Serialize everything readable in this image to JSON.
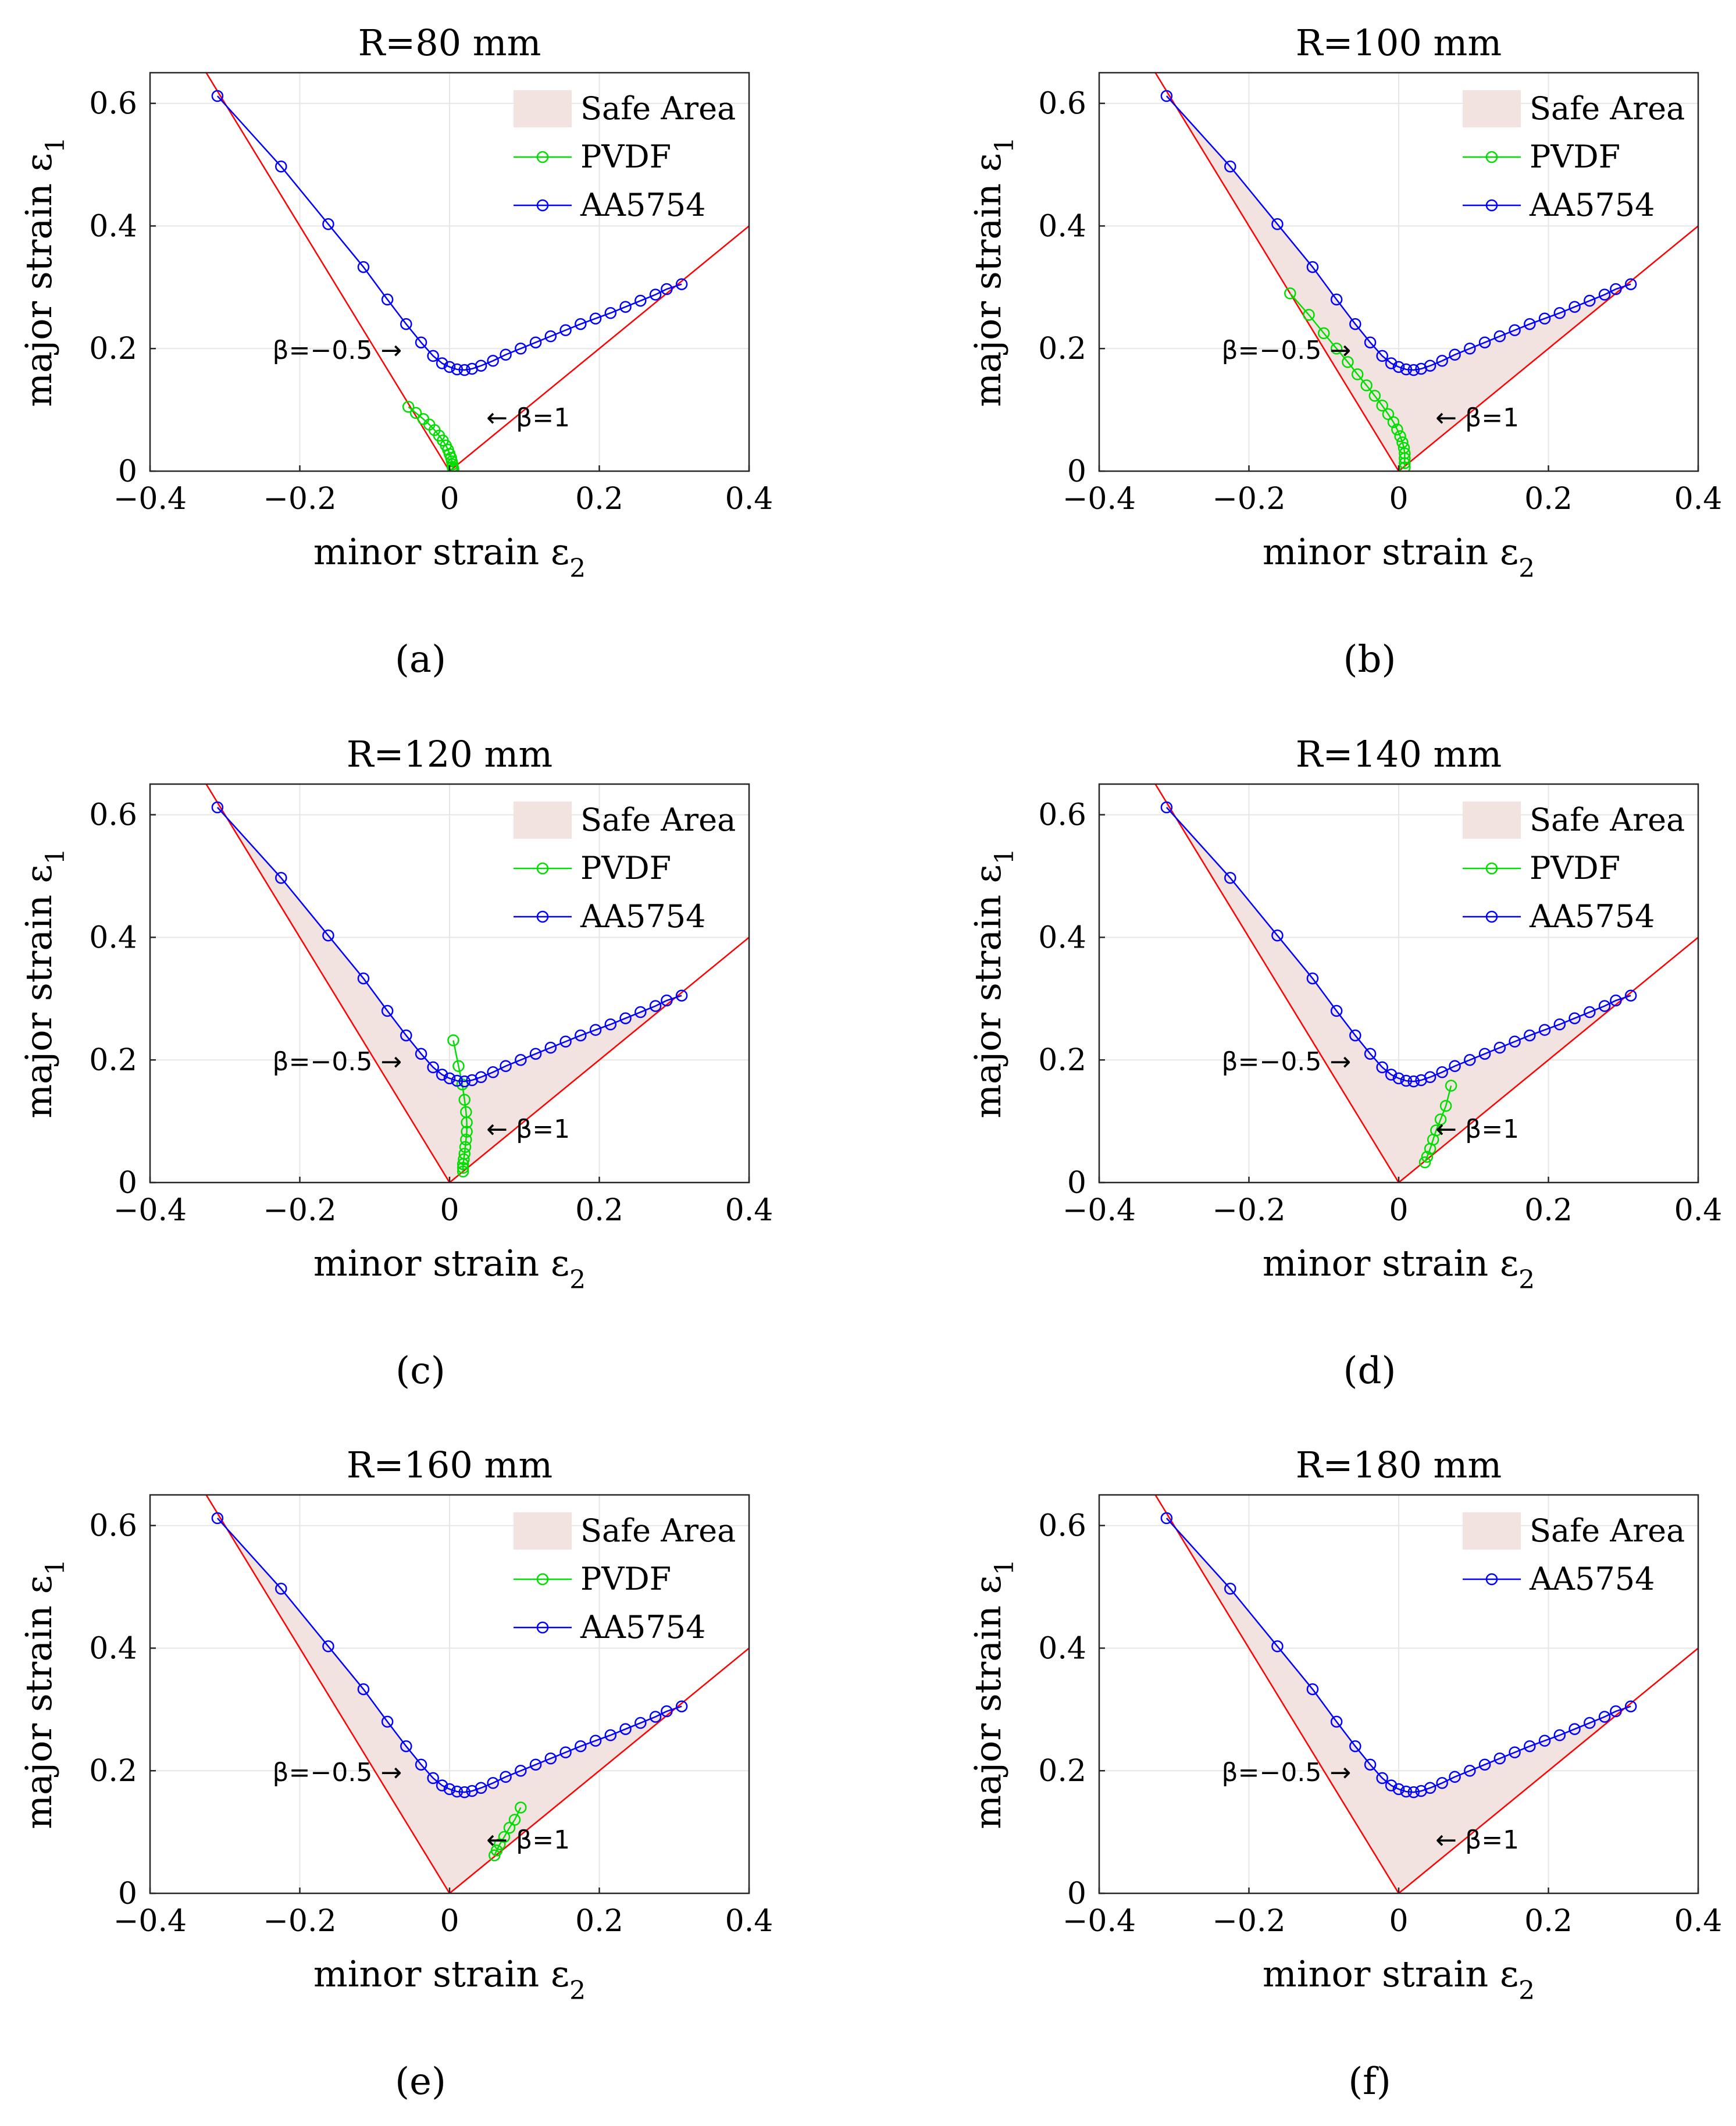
{
  "figure": {
    "chart_data": [
      {
        "type": "line",
        "panel_label": "(a)",
        "title": "R=80 mm",
        "xlabel": "minor strain ε",
        "xlabel_sub": "2",
        "ylabel": "major strain ε",
        "ylabel_sub": "1",
        "xlim": [
          -0.4,
          0.4
        ],
        "ylim": [
          0,
          0.65
        ],
        "xticks": [
          -0.4,
          -0.2,
          0,
          0.2,
          0.4
        ],
        "yticks": [
          0,
          0.2,
          0.4,
          0.6
        ],
        "xtick_labels": [
          "−0.4",
          "−0.2",
          "0",
          "0.2",
          "0.4"
        ],
        "ytick_labels": [
          "0",
          "0.2",
          "0.4",
          "0.6"
        ],
        "grid": true,
        "legend_position": "top-right",
        "safe_area": {
          "name": "Safe Area",
          "color": "#f2e3e1",
          "shown": false
        },
        "beta_lines": {
          "color": "#ff0000",
          "left_label": "β=−0.5 →",
          "right_label": "← β=1",
          "left_anchor": [
            -0.15,
            0.2
          ],
          "right_anchor": [
            0.105,
            0.09
          ]
        },
        "series": [
          {
            "name": "PVDF",
            "color": "#00dd00",
            "x": [
              -0.055,
              -0.045,
              -0.035,
              -0.027,
              -0.02,
              -0.014,
              -0.009,
              -0.005,
              -0.002,
              0.0,
              0.002,
              0.003,
              0.004,
              0.004,
              0.005,
              0.005
            ],
            "y": [
              0.105,
              0.095,
              0.085,
              0.076,
              0.067,
              0.058,
              0.05,
              0.042,
              0.035,
              0.028,
              0.022,
              0.016,
              0.011,
              0.007,
              0.004,
              0.002
            ]
          },
          {
            "name": "AA5754",
            "color": "#0000ff",
            "x": [
              -0.31,
              -0.225,
              -0.162,
              -0.115,
              -0.083,
              -0.058,
              -0.038,
              -0.022,
              -0.01,
              0.0,
              0.01,
              0.02,
              0.03,
              0.042,
              0.058,
              0.075,
              0.095,
              0.115,
              0.135,
              0.155,
              0.175,
              0.195,
              0.215,
              0.235,
              0.255,
              0.275,
              0.29,
              0.31
            ],
            "y": [
              0.612,
              0.497,
              0.403,
              0.333,
              0.28,
              0.24,
              0.21,
              0.188,
              0.176,
              0.17,
              0.166,
              0.165,
              0.167,
              0.172,
              0.18,
              0.19,
              0.2,
              0.21,
              0.22,
              0.23,
              0.24,
              0.249,
              0.258,
              0.268,
              0.278,
              0.288,
              0.297,
              0.305
            ]
          }
        ]
      },
      {
        "type": "line",
        "panel_label": "(b)",
        "title": "R=100 mm",
        "xlabel": "minor strain ε",
        "xlabel_sub": "2",
        "ylabel": "major strain ε",
        "ylabel_sub": "1",
        "xlim": [
          -0.4,
          0.4
        ],
        "ylim": [
          0,
          0.65
        ],
        "xticks": [
          -0.4,
          -0.2,
          0,
          0.2,
          0.4
        ],
        "yticks": [
          0,
          0.2,
          0.4,
          0.6
        ],
        "xtick_labels": [
          "−0.4",
          "−0.2",
          "0",
          "0.2",
          "0.4"
        ],
        "ytick_labels": [
          "0",
          "0.2",
          "0.4",
          "0.6"
        ],
        "grid": true,
        "legend_position": "top-right",
        "safe_area": {
          "name": "Safe Area",
          "color": "#f2e3e1",
          "shown": true
        },
        "beta_lines": {
          "color": "#ff0000",
          "left_label": "β=−0.5 →",
          "right_label": "← β=1",
          "left_anchor": [
            -0.15,
            0.2
          ],
          "right_anchor": [
            0.105,
            0.09
          ]
        },
        "series": [
          {
            "name": "PVDF",
            "color": "#00dd00",
            "x": [
              -0.145,
              -0.12,
              -0.1,
              -0.083,
              -0.068,
              -0.055,
              -0.043,
              -0.032,
              -0.022,
              -0.014,
              -0.007,
              -0.002,
              0.002,
              0.005,
              0.007,
              0.008,
              0.008,
              0.008,
              0.008
            ],
            "y": [
              0.29,
              0.255,
              0.225,
              0.2,
              0.178,
              0.158,
              0.14,
              0.123,
              0.107,
              0.093,
              0.08,
              0.068,
              0.057,
              0.047,
              0.038,
              0.029,
              0.021,
              0.013,
              0.006
            ]
          },
          {
            "name": "AA5754",
            "color": "#0000ff",
            "x": [
              -0.31,
              -0.225,
              -0.162,
              -0.115,
              -0.083,
              -0.058,
              -0.038,
              -0.022,
              -0.01,
              0.0,
              0.01,
              0.02,
              0.03,
              0.042,
              0.058,
              0.075,
              0.095,
              0.115,
              0.135,
              0.155,
              0.175,
              0.195,
              0.215,
              0.235,
              0.255,
              0.275,
              0.29,
              0.31
            ],
            "y": [
              0.612,
              0.497,
              0.403,
              0.333,
              0.28,
              0.24,
              0.21,
              0.188,
              0.176,
              0.17,
              0.166,
              0.165,
              0.167,
              0.172,
              0.18,
              0.19,
              0.2,
              0.21,
              0.22,
              0.23,
              0.24,
              0.249,
              0.258,
              0.268,
              0.278,
              0.288,
              0.297,
              0.305
            ]
          }
        ]
      },
      {
        "type": "line",
        "panel_label": "(c)",
        "title": "R=120 mm",
        "xlabel": "minor strain ε",
        "xlabel_sub": "2",
        "ylabel": "major strain ε",
        "ylabel_sub": "1",
        "xlim": [
          -0.4,
          0.4
        ],
        "ylim": [
          0,
          0.65
        ],
        "xticks": [
          -0.4,
          -0.2,
          0,
          0.2,
          0.4
        ],
        "yticks": [
          0,
          0.2,
          0.4,
          0.6
        ],
        "xtick_labels": [
          "−0.4",
          "−0.2",
          "0",
          "0.2",
          "0.4"
        ],
        "ytick_labels": [
          "0",
          "0.2",
          "0.4",
          "0.6"
        ],
        "grid": true,
        "legend_position": "top-right",
        "safe_area": {
          "name": "Safe Area",
          "color": "#f2e3e1",
          "shown": true
        },
        "beta_lines": {
          "color": "#ff0000",
          "left_label": "β=−0.5 →",
          "right_label": "← β=1",
          "left_anchor": [
            -0.15,
            0.2
          ],
          "right_anchor": [
            0.105,
            0.09
          ]
        },
        "series": [
          {
            "name": "PVDF",
            "color": "#00dd00",
            "x": [
              0.005,
              0.012,
              0.017,
              0.02,
              0.022,
              0.023,
              0.023,
              0.022,
              0.021,
              0.02,
              0.019,
              0.018,
              0.018,
              0.018
            ],
            "y": [
              0.232,
              0.19,
              0.16,
              0.135,
              0.115,
              0.098,
              0.083,
              0.07,
              0.058,
              0.047,
              0.038,
              0.03,
              0.024,
              0.018
            ]
          },
          {
            "name": "AA5754",
            "color": "#0000ff",
            "x": [
              -0.31,
              -0.225,
              -0.162,
              -0.115,
              -0.083,
              -0.058,
              -0.038,
              -0.022,
              -0.01,
              0.0,
              0.01,
              0.02,
              0.03,
              0.042,
              0.058,
              0.075,
              0.095,
              0.115,
              0.135,
              0.155,
              0.175,
              0.195,
              0.215,
              0.235,
              0.255,
              0.275,
              0.29,
              0.31
            ],
            "y": [
              0.612,
              0.497,
              0.403,
              0.333,
              0.28,
              0.24,
              0.21,
              0.188,
              0.176,
              0.17,
              0.166,
              0.165,
              0.167,
              0.172,
              0.18,
              0.19,
              0.2,
              0.21,
              0.22,
              0.23,
              0.24,
              0.249,
              0.258,
              0.268,
              0.278,
              0.288,
              0.297,
              0.305
            ]
          }
        ]
      },
      {
        "type": "line",
        "panel_label": "(d)",
        "title": "R=140 mm",
        "xlabel": "minor strain ε",
        "xlabel_sub": "2",
        "ylabel": "major strain ε",
        "ylabel_sub": "1",
        "xlim": [
          -0.4,
          0.4
        ],
        "ylim": [
          0,
          0.65
        ],
        "xticks": [
          -0.4,
          -0.2,
          0,
          0.2,
          0.4
        ],
        "yticks": [
          0,
          0.2,
          0.4,
          0.6
        ],
        "xtick_labels": [
          "−0.4",
          "−0.2",
          "0",
          "0.2",
          "0.4"
        ],
        "ytick_labels": [
          "0",
          "0.2",
          "0.4",
          "0.6"
        ],
        "grid": true,
        "legend_position": "top-right",
        "safe_area": {
          "name": "Safe Area",
          "color": "#f2e3e1",
          "shown": true
        },
        "beta_lines": {
          "color": "#ff0000",
          "left_label": "β=−0.5 →",
          "right_label": "← β=1",
          "left_anchor": [
            -0.15,
            0.2
          ],
          "right_anchor": [
            0.105,
            0.09
          ]
        },
        "series": [
          {
            "name": "PVDF",
            "color": "#00dd00",
            "x": [
              0.035,
              0.038,
              0.042,
              0.046,
              0.05,
              0.056,
              0.063,
              0.07
            ],
            "y": [
              0.033,
              0.042,
              0.055,
              0.07,
              0.085,
              0.103,
              0.125,
              0.158
            ]
          },
          {
            "name": "AA5754",
            "color": "#0000ff",
            "x": [
              -0.31,
              -0.225,
              -0.162,
              -0.115,
              -0.083,
              -0.058,
              -0.038,
              -0.022,
              -0.01,
              0.0,
              0.01,
              0.02,
              0.03,
              0.042,
              0.058,
              0.075,
              0.095,
              0.115,
              0.135,
              0.155,
              0.175,
              0.195,
              0.215,
              0.235,
              0.255,
              0.275,
              0.29,
              0.31
            ],
            "y": [
              0.612,
              0.497,
              0.403,
              0.333,
              0.28,
              0.24,
              0.21,
              0.188,
              0.176,
              0.17,
              0.166,
              0.165,
              0.167,
              0.172,
              0.18,
              0.19,
              0.2,
              0.21,
              0.22,
              0.23,
              0.24,
              0.249,
              0.258,
              0.268,
              0.278,
              0.288,
              0.297,
              0.305
            ]
          }
        ]
      },
      {
        "type": "line",
        "panel_label": "(e)",
        "title": "R=160 mm",
        "xlabel": "minor strain ε",
        "xlabel_sub": "2",
        "ylabel": "major strain ε",
        "ylabel_sub": "1",
        "xlim": [
          -0.4,
          0.4
        ],
        "ylim": [
          0,
          0.65
        ],
        "xticks": [
          -0.4,
          -0.2,
          0,
          0.2,
          0.4
        ],
        "yticks": [
          0,
          0.2,
          0.4,
          0.6
        ],
        "xtick_labels": [
          "−0.4",
          "−0.2",
          "0",
          "0.2",
          "0.4"
        ],
        "ytick_labels": [
          "0",
          "0.2",
          "0.4",
          "0.6"
        ],
        "grid": true,
        "legend_position": "top-right",
        "safe_area": {
          "name": "Safe Area",
          "color": "#f2e3e1",
          "shown": true
        },
        "beta_lines": {
          "color": "#ff0000",
          "left_label": "β=−0.5 →",
          "right_label": "← β=1",
          "left_anchor": [
            -0.15,
            0.2
          ],
          "right_anchor": [
            0.105,
            0.09
          ]
        },
        "series": [
          {
            "name": "PVDF",
            "color": "#00dd00",
            "x": [
              0.06,
              0.063,
              0.067,
              0.073,
              0.08,
              0.087,
              0.095
            ],
            "y": [
              0.062,
              0.07,
              0.08,
              0.092,
              0.107,
              0.12,
              0.14
            ]
          },
          {
            "name": "AA5754",
            "color": "#0000ff",
            "x": [
              -0.31,
              -0.225,
              -0.162,
              -0.115,
              -0.083,
              -0.058,
              -0.038,
              -0.022,
              -0.01,
              0.0,
              0.01,
              0.02,
              0.03,
              0.042,
              0.058,
              0.075,
              0.095,
              0.115,
              0.135,
              0.155,
              0.175,
              0.195,
              0.215,
              0.235,
              0.255,
              0.275,
              0.29,
              0.31
            ],
            "y": [
              0.612,
              0.497,
              0.403,
              0.333,
              0.28,
              0.24,
              0.21,
              0.188,
              0.176,
              0.17,
              0.166,
              0.165,
              0.167,
              0.172,
              0.18,
              0.19,
              0.2,
              0.21,
              0.22,
              0.23,
              0.24,
              0.249,
              0.258,
              0.268,
              0.278,
              0.288,
              0.297,
              0.305
            ]
          }
        ]
      },
      {
        "type": "line",
        "panel_label": "(f)",
        "title": "R=180 mm",
        "xlabel": "minor strain ε",
        "xlabel_sub": "2",
        "ylabel": "major strain ε",
        "ylabel_sub": "1",
        "xlim": [
          -0.4,
          0.4
        ],
        "ylim": [
          0,
          0.65
        ],
        "xticks": [
          -0.4,
          -0.2,
          0,
          0.2,
          0.4
        ],
        "yticks": [
          0,
          0.2,
          0.4,
          0.6
        ],
        "xtick_labels": [
          "−0.4",
          "−0.2",
          "0",
          "0.2",
          "0.4"
        ],
        "ytick_labels": [
          "0",
          "0.2",
          "0.4",
          "0.6"
        ],
        "grid": true,
        "legend_position": "top-right",
        "safe_area": {
          "name": "Safe Area",
          "color": "#f2e3e1",
          "shown": true
        },
        "beta_lines": {
          "color": "#ff0000",
          "left_label": "β=−0.5 →",
          "right_label": "← β=1",
          "left_anchor": [
            -0.15,
            0.2
          ],
          "right_anchor": [
            0.105,
            0.09
          ]
        },
        "series": [
          {
            "name": "AA5754",
            "color": "#0000ff",
            "x": [
              -0.31,
              -0.225,
              -0.162,
              -0.115,
              -0.083,
              -0.058,
              -0.038,
              -0.022,
              -0.01,
              0.0,
              0.01,
              0.02,
              0.03,
              0.042,
              0.058,
              0.075,
              0.095,
              0.115,
              0.135,
              0.155,
              0.175,
              0.195,
              0.215,
              0.235,
              0.255,
              0.275,
              0.29,
              0.31
            ],
            "y": [
              0.612,
              0.497,
              0.403,
              0.333,
              0.28,
              0.24,
              0.21,
              0.188,
              0.176,
              0.17,
              0.166,
              0.165,
              0.167,
              0.172,
              0.18,
              0.19,
              0.2,
              0.21,
              0.22,
              0.23,
              0.24,
              0.249,
              0.258,
              0.268,
              0.278,
              0.288,
              0.297,
              0.305
            ]
          }
        ]
      }
    ]
  }
}
